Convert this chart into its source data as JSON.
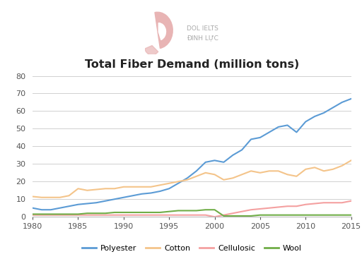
{
  "title": "Total Fiber Demand (million tons)",
  "years": [
    1980,
    1981,
    1982,
    1983,
    1984,
    1985,
    1986,
    1987,
    1988,
    1989,
    1990,
    1991,
    1992,
    1993,
    1994,
    1995,
    1996,
    1997,
    1998,
    1999,
    2000,
    2001,
    2002,
    2003,
    2004,
    2005,
    2006,
    2007,
    2008,
    2009,
    2010,
    2011,
    2012,
    2013,
    2014,
    2015
  ],
  "polyester": [
    5,
    4,
    4,
    5,
    6,
    7,
    7.5,
    8,
    9,
    10,
    11,
    12,
    13,
    13.5,
    14.5,
    16,
    19,
    22,
    26,
    31,
    32,
    31,
    35,
    38,
    44,
    45,
    48,
    51,
    52,
    48,
    54,
    57,
    59,
    62,
    65,
    67
  ],
  "cotton": [
    11.5,
    11,
    11,
    11,
    12,
    16,
    15,
    15.5,
    16,
    16,
    17,
    17,
    17,
    17,
    18,
    19,
    20,
    21,
    23,
    25,
    24,
    21,
    22,
    24,
    26,
    25,
    26,
    26,
    24,
    23,
    27,
    28,
    26,
    27,
    29,
    32
  ],
  "cellulosic": [
    1,
    1,
    1,
    1,
    1,
    1,
    1,
    1,
    1,
    1,
    1,
    1,
    1,
    1,
    1,
    1,
    1,
    1,
    1,
    1,
    0,
    1,
    2,
    3,
    4,
    4.5,
    5,
    5.5,
    6,
    6,
    7,
    7.5,
    8,
    8,
    8,
    9
  ],
  "wool": [
    1.5,
    1.5,
    1.5,
    1.5,
    1.5,
    1.5,
    2,
    2,
    2,
    2.5,
    2.5,
    2.5,
    2.5,
    2.5,
    2.5,
    3,
    3.5,
    3.5,
    3.5,
    4,
    4,
    0.5,
    0.5,
    0.5,
    0.5,
    1,
    1,
    1,
    1,
    1,
    1,
    1,
    1,
    1,
    1,
    1
  ],
  "polyester_color": "#5b9bd5",
  "cotton_color": "#f4c48a",
  "cellulosic_color": "#f4a0a0",
  "wool_color": "#70ad47",
  "background_color": "#ffffff",
  "grid_color": "#d0d0d0",
  "ylim": [
    0,
    80
  ],
  "xlim": [
    1980,
    2015
  ],
  "yticks": [
    0,
    10,
    20,
    30,
    40,
    50,
    60,
    70,
    80
  ],
  "xticks": [
    1980,
    1985,
    1990,
    1995,
    2000,
    2005,
    2010,
    2015
  ],
  "title_fontsize": 11.5,
  "tick_fontsize": 8,
  "legend_fontsize": 8,
  "line_width": 1.5,
  "logo_text": "DOL IELTS\nĐINH LỰC",
  "logo_text_color": "#aaaaaa",
  "logo_color": "#e8b4b4"
}
